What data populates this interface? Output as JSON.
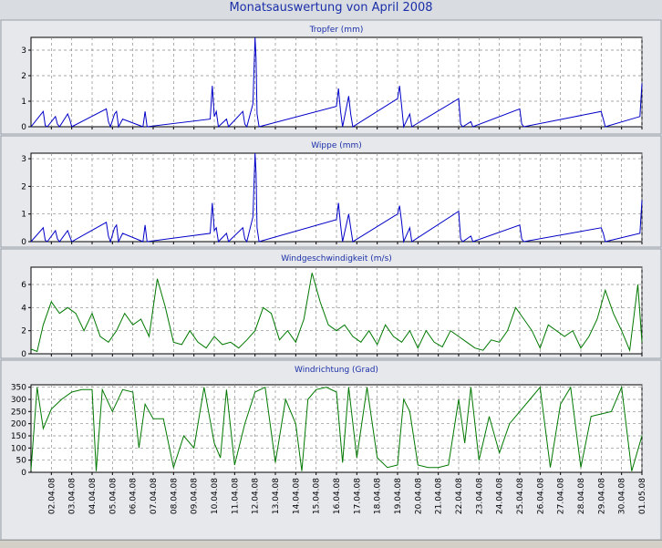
{
  "title": "Monatsauswertung von April 2008",
  "chart_data": [
    {
      "type": "line",
      "title": "Tropfer (mm)",
      "color": "#0000c8",
      "ylim": [
        0,
        3.5
      ],
      "yticks": [
        0,
        1,
        2,
        3
      ],
      "grid": true,
      "x_unit": "day of April 2008",
      "x": [
        1.0,
        1.6,
        1.7,
        1.8,
        2.2,
        2.3,
        2.4,
        2.8,
        2.9,
        3.0,
        4.7,
        4.8,
        4.9,
        5.1,
        5.2,
        5.3,
        5.5,
        6.5,
        6.6,
        6.7,
        9.8,
        9.9,
        10.0,
        10.1,
        10.2,
        10.6,
        10.7,
        11.4,
        11.5,
        11.6,
        11.9,
        12.0,
        12.05,
        12.1,
        12.2,
        16.0,
        16.1,
        16.2,
        16.3,
        16.6,
        16.7,
        16.8,
        19.0,
        19.1,
        19.2,
        19.3,
        19.6,
        19.7,
        22.0,
        22.1,
        22.2,
        22.6,
        22.7,
        25.0,
        25.1,
        25.2,
        29.0,
        29.1,
        29.2,
        30.9,
        31.0
      ],
      "y": [
        0,
        0.6,
        0.05,
        0,
        0.4,
        0.1,
        0,
        0.5,
        0.3,
        0,
        0.7,
        0.2,
        0,
        0.5,
        0.6,
        0,
        0.3,
        0,
        0.6,
        0,
        0.3,
        1.6,
        0.4,
        0.6,
        0,
        0.3,
        0,
        0.6,
        0.1,
        0,
        0.9,
        3.5,
        2.7,
        0.5,
        0,
        0.8,
        1.5,
        0.6,
        0,
        1.2,
        0.5,
        0,
        1.1,
        1.6,
        0.8,
        0,
        0.5,
        0,
        1.1,
        0.1,
        0,
        0.2,
        0,
        0.7,
        0.1,
        0,
        0.6,
        0.3,
        0,
        0.4,
        1.7
      ]
    },
    {
      "type": "line",
      "title": "Wippe (mm)",
      "color": "#0000c8",
      "ylim": [
        0,
        3.2
      ],
      "yticks": [
        0,
        1,
        2,
        3
      ],
      "grid": true,
      "x_unit": "day of April 2008",
      "x": [
        1.0,
        1.6,
        1.7,
        1.8,
        2.2,
        2.3,
        2.4,
        2.8,
        2.9,
        3.0,
        4.7,
        4.8,
        4.9,
        5.1,
        5.2,
        5.3,
        5.5,
        6.5,
        6.6,
        6.7,
        9.8,
        9.9,
        10.0,
        10.1,
        10.2,
        10.6,
        10.7,
        11.4,
        11.5,
        11.6,
        11.9,
        12.0,
        12.05,
        12.1,
        12.2,
        16.0,
        16.1,
        16.2,
        16.3,
        16.6,
        16.7,
        16.8,
        19.0,
        19.1,
        19.2,
        19.3,
        19.6,
        19.7,
        22.0,
        22.1,
        22.2,
        22.6,
        22.7,
        25.0,
        25.1,
        25.2,
        29.0,
        29.1,
        29.2,
        30.9,
        31.0
      ],
      "y": [
        0,
        0.5,
        0.05,
        0,
        0.4,
        0.1,
        0,
        0.4,
        0.2,
        0,
        0.7,
        0.2,
        0,
        0.5,
        0.6,
        0,
        0.3,
        0,
        0.6,
        0,
        0.3,
        1.4,
        0.4,
        0.5,
        0,
        0.3,
        0,
        0.5,
        0.1,
        0,
        0.9,
        3.2,
        2.5,
        0.5,
        0,
        0.8,
        1.4,
        0.6,
        0,
        1.0,
        0.5,
        0,
        1.0,
        1.3,
        0.7,
        0,
        0.5,
        0,
        1.1,
        0.1,
        0,
        0.2,
        0,
        0.6,
        0.1,
        0,
        0.5,
        0.3,
        0,
        0.3,
        1.5
      ]
    },
    {
      "type": "line",
      "title": "Windgeschwindigkeit (m/s)",
      "color": "#007800",
      "ylim": [
        0,
        7.5
      ],
      "yticks": [
        0,
        2,
        4,
        6
      ],
      "grid": true,
      "x_unit": "day of April 2008",
      "x": [
        1.0,
        1.3,
        1.6,
        2.0,
        2.4,
        2.8,
        3.2,
        3.6,
        4.0,
        4.4,
        4.8,
        5.2,
        5.6,
        6.0,
        6.4,
        6.8,
        7.2,
        7.6,
        8.0,
        8.4,
        8.8,
        9.2,
        9.6,
        10.0,
        10.4,
        10.8,
        11.2,
        11.6,
        12.0,
        12.4,
        12.8,
        13.2,
        13.6,
        14.0,
        14.4,
        14.8,
        15.2,
        15.6,
        16.0,
        16.4,
        16.8,
        17.2,
        17.6,
        18.0,
        18.4,
        18.8,
        19.2,
        19.6,
        20.0,
        20.4,
        20.8,
        21.2,
        21.6,
        22.0,
        22.4,
        22.8,
        23.2,
        23.6,
        24.0,
        24.4,
        24.8,
        25.2,
        25.6,
        26.0,
        26.4,
        26.8,
        27.2,
        27.6,
        28.0,
        28.4,
        28.8,
        29.2,
        29.6,
        30.0,
        30.4,
        30.8,
        31.0
      ],
      "y": [
        0.4,
        0.2,
        2.5,
        4.5,
        3.5,
        4.0,
        3.5,
        2.0,
        3.5,
        1.5,
        1.0,
        2.0,
        3.5,
        2.5,
        3.0,
        1.5,
        6.5,
        4.0,
        1.0,
        0.8,
        2.0,
        1.0,
        0.5,
        1.5,
        0.8,
        1.0,
        0.5,
        1.2,
        2.0,
        4.0,
        3.5,
        1.2,
        2.0,
        1.0,
        3.0,
        7.0,
        4.5,
        2.5,
        2.0,
        2.5,
        1.5,
        1.0,
        2.0,
        0.8,
        2.5,
        1.5,
        1.0,
        2.0,
        0.5,
        2.0,
        1.0,
        0.6,
        2.0,
        1.5,
        1.0,
        0.5,
        0.3,
        1.2,
        1.0,
        2.0,
        4.0,
        3.0,
        2.0,
        0.5,
        2.5,
        2.0,
        1.5,
        2.0,
        0.5,
        1.5,
        3.0,
        5.5,
        3.5,
        2.0,
        0.3,
        6.0,
        1.0
      ]
    },
    {
      "type": "line",
      "title": "Windrichtung (Grad)",
      "color": "#007800",
      "ylim": [
        0,
        360
      ],
      "yticks": [
        0,
        50,
        100,
        150,
        200,
        250,
        300,
        350
      ],
      "grid": true,
      "x_unit": "day of April 2008",
      "x": [
        1.0,
        1.3,
        1.6,
        2.0,
        2.5,
        3.0,
        3.5,
        4.0,
        4.2,
        4.5,
        5.0,
        5.5,
        6.0,
        6.3,
        6.6,
        7.0,
        7.5,
        8.0,
        8.5,
        9.0,
        9.5,
        10.0,
        10.3,
        10.6,
        11.0,
        11.5,
        12.0,
        12.5,
        13.0,
        13.5,
        14.0,
        14.3,
        14.6,
        15.0,
        15.5,
        16.0,
        16.3,
        16.6,
        17.0,
        17.5,
        18.0,
        18.5,
        19.0,
        19.3,
        19.6,
        20.0,
        20.5,
        21.0,
        21.5,
        22.0,
        22.3,
        22.6,
        23.0,
        23.5,
        24.0,
        24.5,
        25.0,
        25.5,
        26.0,
        26.5,
        27.0,
        27.5,
        28.0,
        28.5,
        29.0,
        29.5,
        30.0,
        30.5,
        31.0
      ],
      "y": [
        10,
        350,
        180,
        260,
        300,
        330,
        340,
        340,
        5,
        340,
        250,
        340,
        330,
        100,
        280,
        220,
        220,
        20,
        150,
        100,
        350,
        120,
        60,
        340,
        30,
        200,
        330,
        350,
        40,
        300,
        200,
        5,
        300,
        340,
        350,
        330,
        40,
        350,
        60,
        350,
        60,
        20,
        30,
        300,
        250,
        30,
        20,
        20,
        30,
        300,
        120,
        350,
        50,
        230,
        80,
        200,
        250,
        300,
        350,
        20,
        280,
        350,
        20,
        230,
        240,
        250,
        350,
        5,
        150
      ]
    }
  ],
  "x_axis": {
    "tick_labels": [
      "02.04.08",
      "03.04.08",
      "04.04.08",
      "05.04.08",
      "06.04.08",
      "07.04.08",
      "08.04.08",
      "09.04.08",
      "10.04.08",
      "11.04.08",
      "12.04.08",
      "13.04.08",
      "14.04.08",
      "15.04.08",
      "16.04.08",
      "17.04.08",
      "18.04.08",
      "19.04.08",
      "20.04.08",
      "21.04.08",
      "22.04.08",
      "23.04.08",
      "24.04.08",
      "25.04.08",
      "26.04.08",
      "27.04.08",
      "28.04.08",
      "29.04.08",
      "30.04.08",
      "01.05.08"
    ],
    "range": [
      "01.04.08",
      "01.05.08"
    ]
  }
}
